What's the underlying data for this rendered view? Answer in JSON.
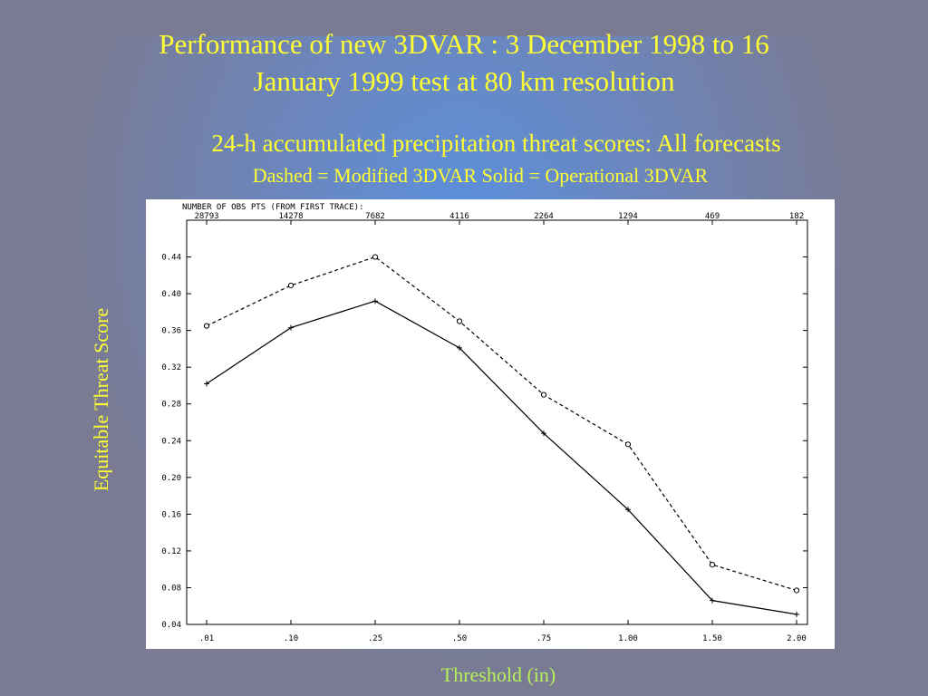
{
  "slide": {
    "title_line1": "Performance of new 3DVAR : 3 December 1998 to 16",
    "title_line2": "January 1999 test at 80 km resolution",
    "subtitle": "24-h accumulated precipitation threat scores: All forecasts",
    "legend_note": "Dashed = Modified 3DVAR  Solid = Operational 3DVAR",
    "xlabel": "Threshold (in)",
    "ylabel": "Equitable Threat Score"
  },
  "colors": {
    "background": "#7a7a92",
    "glow": "#5a91e1",
    "title": "#ffff33",
    "xlabel": "#b6f25a",
    "plot_bg": "#ffffff",
    "ink": "#000000"
  },
  "chart_data": {
    "type": "line",
    "categories": [
      ".01",
      ".10",
      ".25",
      ".50",
      ".75",
      "1.00",
      "1.50",
      "2.00"
    ],
    "top_axis_title": "NUMBER OF OBS PTS (FROM FIRST TRACE):",
    "top_axis_labels": [
      "28793",
      "14278",
      "7682",
      "4116",
      "2264",
      "1294",
      "469",
      "182"
    ],
    "y_ticks": [
      "0.04",
      "0.08",
      "0.12",
      "0.16",
      "0.20",
      "0.24",
      "0.28",
      "0.32",
      "0.36",
      "0.40",
      "0.44"
    ],
    "ylim": [
      0.04,
      0.48
    ],
    "series": [
      {
        "name": "Modified 3DVAR",
        "style": "dashed",
        "marker": "circle",
        "values": [
          0.365,
          0.409,
          0.44,
          0.37,
          0.29,
          0.236,
          0.105,
          0.077
        ]
      },
      {
        "name": "Operational 3DVAR",
        "style": "solid",
        "marker": "plus",
        "values": [
          0.302,
          0.363,
          0.392,
          0.341,
          0.248,
          0.165,
          0.066,
          0.051
        ]
      }
    ],
    "grid": false
  }
}
